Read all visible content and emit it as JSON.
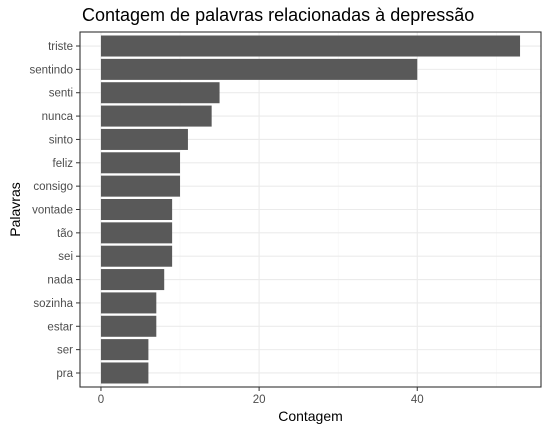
{
  "chart_data": {
    "type": "bar",
    "orientation": "horizontal",
    "title": "Contagem de palavras relacionadas à depressão",
    "xlabel": "Contagem",
    "ylabel": "Palavras",
    "categories": [
      "triste",
      "sentindo",
      "senti",
      "nunca",
      "sinto",
      "feliz",
      "consigo",
      "vontade",
      "tão",
      "sei",
      "nada",
      "sozinha",
      "estar",
      "ser",
      "pra"
    ],
    "values": [
      53,
      40,
      15,
      14,
      11,
      10,
      10,
      9,
      9,
      9,
      8,
      7,
      7,
      6,
      6
    ],
    "xlim": [
      -2.65,
      55.65
    ],
    "xticks": [
      0,
      20,
      40
    ],
    "grid": true,
    "colors": {
      "bar": "#595959",
      "panel_border": "#333333",
      "grid_major": "#ebebeb",
      "grid_minor": "#f5f5f5"
    }
  }
}
